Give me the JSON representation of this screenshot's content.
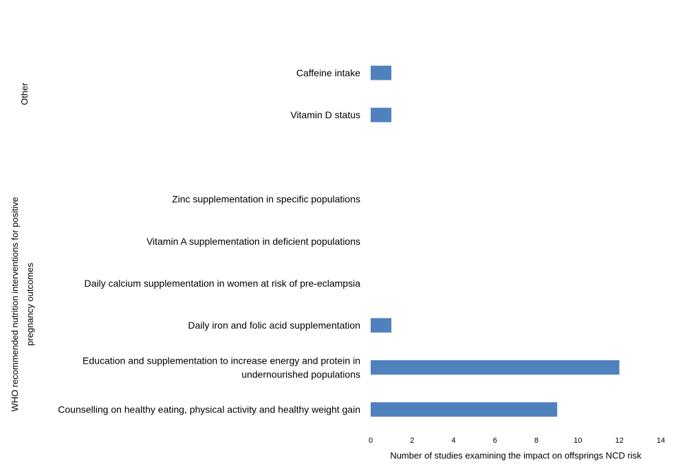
{
  "chart_data": {
    "type": "bar",
    "orientation": "horizontal",
    "categories": [
      "Caffeine intake",
      "Vitamin D status",
      "",
      "Zinc supplementation in specific populations",
      "Vitamin A supplementation in deficient populations",
      "Daily calcium supplementation in women at risk of pre-eclampsia",
      "Daily iron and folic acid supplementation ",
      "Education and supplementation to increase energy and protein in undernourished populations",
      "Counselling on healthy eating, physical activity and healthy weight gain"
    ],
    "category_lines": [
      [
        "Caffeine intake"
      ],
      [
        "Vitamin D status"
      ],
      [],
      [
        "Zinc supplementation in specific populations"
      ],
      [
        "Vitamin A supplementation in deficient populations"
      ],
      [
        "Daily calcium supplementation in women at risk of pre-eclampsia"
      ],
      [
        "Daily iron and folic acid supplementation "
      ],
      [
        "Education and supplementation to increase energy and protein in",
        "undernourished populations"
      ],
      [
        "Counselling on healthy eating, physical activity and healthy weight gain"
      ]
    ],
    "values": [
      1,
      1,
      null,
      0,
      0,
      0,
      1,
      12,
      9
    ],
    "groups": [
      {
        "label": "Other",
        "lines": [
          "Other"
        ],
        "from": 0,
        "to": 1
      },
      {
        "label": "WHO recommended nutrition interventions for positive pregnancy outcomes",
        "lines": [
          "WHO recommended nutrition interventions for positive",
          "pregnancy outcomes"
        ],
        "from": 3,
        "to": 8
      }
    ],
    "xlabel": "Number  of studies examining the impact on offsprings NCD risk",
    "xlim": [
      0,
      14
    ],
    "xticks": [
      0,
      2,
      4,
      6,
      8,
      10,
      12,
      14
    ],
    "grid": false,
    "legend": "none",
    "bar_color": "#4f81bd"
  }
}
